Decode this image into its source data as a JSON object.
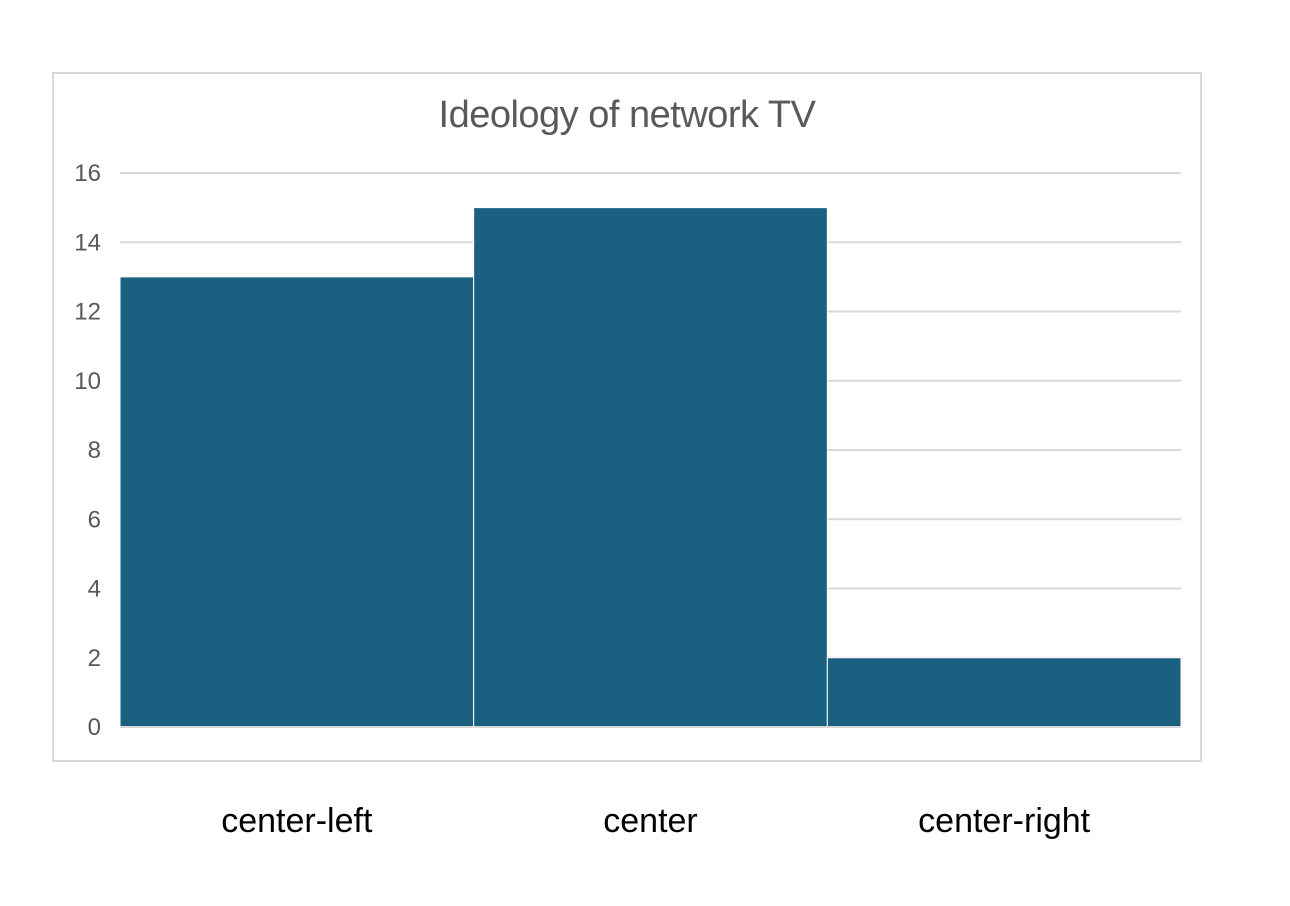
{
  "chart_data": {
    "type": "bar",
    "title": "Ideology of network TV",
    "categories": [
      "center-left",
      "center",
      "center-right"
    ],
    "values": [
      13,
      15,
      2
    ],
    "ylim": [
      0,
      16
    ],
    "yticks": [
      0,
      2,
      4,
      6,
      8,
      10,
      12,
      14,
      16
    ],
    "xlabel": "",
    "ylabel": "",
    "grid": true,
    "legend": "none",
    "colors": {
      "bar": "#1a6080",
      "gridline": "#d9d9d9",
      "title": "#595959",
      "tick_label": "#595959",
      "category_label": "#000000"
    }
  }
}
